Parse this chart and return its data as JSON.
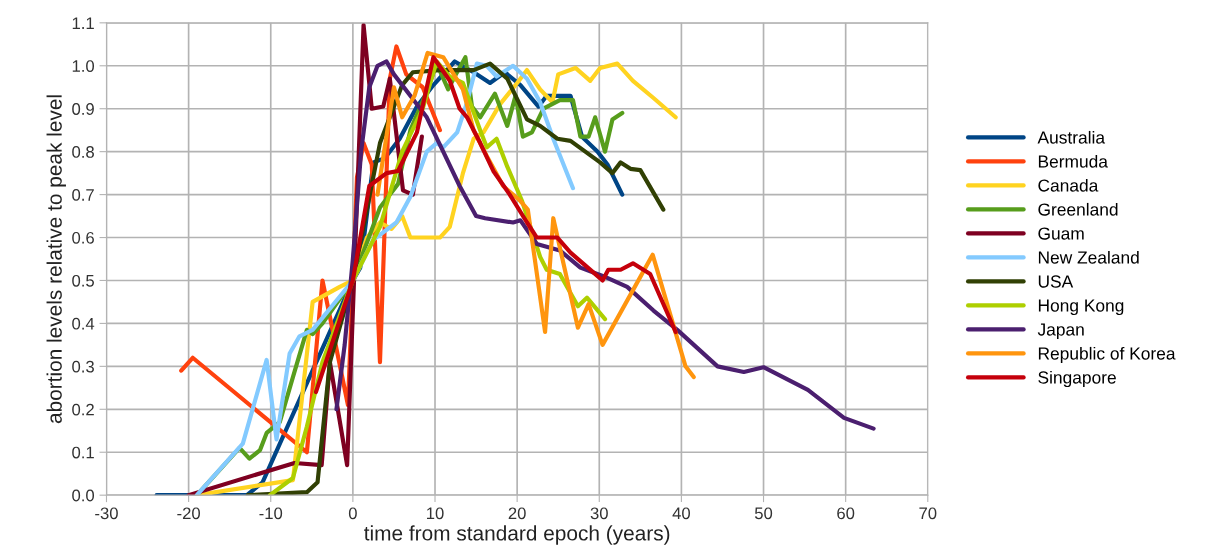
{
  "chart_data": {
    "type": "line",
    "xlabel": "time from standard epoch (years)",
    "ylabel": "abortion levels relative to peak level",
    "xlim": [
      -30,
      70
    ],
    "xticks": [
      -30,
      -20,
      -10,
      0,
      10,
      20,
      30,
      40,
      50,
      60,
      70
    ],
    "ylim": [
      0,
      1.1
    ],
    "yticks": [
      {
        "value": 0,
        "label": "0.0"
      },
      {
        "value": 0.1,
        "label": "0.1"
      },
      {
        "value": 0.2,
        "label": "0.2"
      },
      {
        "value": 0.3,
        "label": "0.3"
      },
      {
        "value": 0.4,
        "label": "0.4"
      },
      {
        "value": 0.5,
        "label": "0.5"
      },
      {
        "value": 0.6,
        "label": "0.6"
      },
      {
        "value": 0.7,
        "label": "0.7"
      },
      {
        "value": 0.8,
        "label": "0.8"
      },
      {
        "value": 0.9,
        "label": "0.9"
      },
      {
        "value": 1.0,
        "label": "1.0"
      },
      {
        "value": 1.1,
        "label": "1.1"
      }
    ],
    "grid": true,
    "legend": "right",
    "marker": "none",
    "line_style": "solid",
    "series": [
      {
        "name": "Australia",
        "color": "#004586",
        "x": [
          -23.9,
          -12.9,
          -11,
          0,
          0.9,
          2.5,
          3.9,
          5.7,
          7.8,
          9.8,
          12.4,
          14.7,
          16.7,
          18.5,
          20.4,
          22.6,
          23.6,
          26.5,
          27.9,
          29.8,
          31,
          32.8
        ],
        "values": [
          0,
          0,
          0.03,
          0.5,
          0.53,
          0.775,
          0.785,
          0.83,
          0.905,
          0.955,
          1.01,
          0.985,
          0.96,
          0.985,
          0.955,
          0.905,
          0.93,
          0.93,
          0.835,
          0.8,
          0.77,
          0.7
        ]
      },
      {
        "name": "Bermuda",
        "color": "#ff420e",
        "x": [
          -20.9,
          -19.5,
          -5.6,
          -3.7,
          -0.6,
          0.5,
          1.3,
          2.3,
          3.3,
          4.5,
          5.3,
          6.5,
          8.5,
          10.6
        ],
        "values": [
          0.29,
          0.32,
          0.1,
          0.5,
          0.21,
          0.74,
          0.82,
          0.77,
          0.31,
          0.97,
          1.045,
          0.98,
          0.95,
          0.85
        ]
      },
      {
        "name": "Canada",
        "color": "#ffd320",
        "x": [
          -19,
          -7.3,
          -4.9,
          -1.6,
          0,
          1.7,
          3.3,
          4.7,
          6,
          7,
          10.6,
          11.8,
          13.4,
          14.7,
          15.9,
          17.9,
          20,
          21.2,
          22.8,
          24.3,
          25,
          27.1,
          28.9,
          30.1,
          32.2,
          34.1,
          36.6,
          39.3
        ],
        "values": [
          0,
          0.035,
          0.45,
          0.485,
          0.5,
          0.6,
          0.635,
          0.62,
          0.65,
          0.6,
          0.6,
          0.625,
          0.75,
          0.83,
          0.845,
          0.91,
          0.96,
          0.99,
          0.945,
          0.915,
          0.98,
          0.995,
          0.965,
          0.995,
          1.005,
          0.965,
          0.925,
          0.88
        ]
      },
      {
        "name": "Greenland",
        "color": "#579d1c",
        "x": [
          -19,
          -13.8,
          -12.6,
          -11.3,
          -10.5,
          -8.9,
          -7.3,
          -5.6,
          -4.9,
          -3.7,
          0,
          3.3,
          5.5,
          7,
          9,
          10.2,
          11.6,
          12.4,
          13.7,
          14.5,
          15.5,
          17.3,
          18.8,
          19.8,
          20.7,
          21.8,
          23.2,
          25.2,
          26.8,
          27.7,
          28.7,
          29.5,
          30.7,
          31.6,
          32.8
        ],
        "values": [
          0,
          0.11,
          0.085,
          0.105,
          0.145,
          0.17,
          0.275,
          0.385,
          0.375,
          0.4,
          0.5,
          0.67,
          0.725,
          0.85,
          0.94,
          1.005,
          0.945,
          0.975,
          1.02,
          0.905,
          0.88,
          0.935,
          0.86,
          0.93,
          0.835,
          0.845,
          0.9,
          0.92,
          0.92,
          0.835,
          0.835,
          0.88,
          0.8,
          0.875,
          0.89
        ]
      },
      {
        "name": "Guam",
        "color": "#7e0021",
        "x": [
          -20,
          -7.1,
          -3.8,
          -2.8,
          -0.7,
          1.3,
          2.3,
          3.7,
          4.5,
          6.1,
          7.3,
          8.4
        ],
        "values": [
          0,
          0.075,
          0.07,
          0.31,
          0.07,
          1.095,
          0.9,
          0.905,
          0.97,
          0.71,
          0.7,
          0.835
        ]
      },
      {
        "name": "New Zealand",
        "color": "#83caff",
        "x": [
          -19,
          -13.4,
          -10.5,
          -9.3,
          -7.7,
          -6.5,
          -4.9,
          0,
          2.5,
          5.3,
          7,
          9,
          10.2,
          11,
          12.7,
          13.9,
          15.1,
          16.3,
          17.5,
          19.5,
          21.2,
          22.8,
          24.4,
          26.8
        ],
        "values": [
          0,
          0.12,
          0.315,
          0.13,
          0.33,
          0.37,
          0.385,
          0.5,
          0.595,
          0.635,
          0.695,
          0.8,
          0.82,
          0.81,
          0.845,
          0.915,
          1.005,
          1.0,
          0.975,
          1.0,
          0.97,
          0.915,
          0.83,
          0.715
        ]
      },
      {
        "name": "USA",
        "color": "#314004",
        "x": [
          -12.8,
          -5.6,
          -4.3,
          -2.8,
          0,
          3.3,
          6,
          7.3,
          10.6,
          14.7,
          16.7,
          18.8,
          21.2,
          22.8,
          24.9,
          26.5,
          30.1,
          31.6,
          32.6,
          33.8,
          35,
          37.8
        ],
        "values": [
          0,
          0.007,
          0.03,
          0.31,
          0.5,
          0.82,
          0.955,
          0.985,
          0.99,
          0.99,
          1.005,
          0.97,
          0.875,
          0.86,
          0.83,
          0.825,
          0.775,
          0.75,
          0.775,
          0.76,
          0.757,
          0.665
        ]
      },
      {
        "name": "Hong Kong",
        "color": "#aecf00",
        "x": [
          -10.1,
          -7.3,
          -5.6,
          -3.7,
          0,
          3.3,
          6,
          8.5,
          10.2,
          11.8,
          13.4,
          15.5,
          16.3,
          17.5,
          18.8,
          20.6,
          22.8,
          23.6,
          25.2,
          27.4,
          28.5,
          30.7
        ],
        "values": [
          0,
          0.04,
          0.16,
          0.31,
          0.5,
          0.625,
          0.8,
          0.9,
          1.01,
          0.975,
          0.96,
          0.85,
          0.81,
          0.83,
          0.765,
          0.685,
          0.555,
          0.525,
          0.515,
          0.44,
          0.46,
          0.41
        ]
      },
      {
        "name": "Japan",
        "color": "#4b1f6f",
        "x": [
          -2,
          -1,
          0,
          1,
          2,
          3,
          4.1,
          5,
          7,
          9,
          11,
          13,
          15,
          16.1,
          19.5,
          20.4,
          22.4,
          25.2,
          27.7,
          30.5,
          33.4,
          36.6,
          39.5,
          44.4,
          47.6,
          50,
          55.4,
          59.8,
          63.4
        ],
        "values": [
          0.2,
          0.35,
          0.55,
          0.8,
          0.95,
          1.0,
          1.01,
          0.98,
          0.93,
          0.88,
          0.8,
          0.72,
          0.65,
          0.645,
          0.635,
          0.64,
          0.585,
          0.57,
          0.53,
          0.51,
          0.485,
          0.43,
          0.385,
          0.3,
          0.287,
          0.298,
          0.245,
          0.18,
          0.155
        ]
      },
      {
        "name": "Republic of Korea",
        "color": "#ff950e",
        "x": [
          3,
          5,
          6,
          7.5,
          9.1,
          11,
          13.4,
          14.7,
          16.3,
          18.3,
          20.4,
          21.3,
          23.4,
          24.4,
          27.4,
          28.7,
          30.4,
          36.5,
          40.5,
          41.5
        ],
        "values": [
          0.7,
          0.95,
          0.88,
          0.93,
          1.03,
          1.02,
          0.945,
          0.85,
          0.79,
          0.72,
          0.685,
          0.665,
          0.38,
          0.645,
          0.39,
          0.445,
          0.35,
          0.56,
          0.3,
          0.275
        ]
      },
      {
        "name": "Singapore",
        "color": "#c5000b",
        "x": [
          -4.5,
          0,
          2,
          4.1,
          5.5,
          7.8,
          9.8,
          11.8,
          13,
          13.9,
          15.5,
          17.1,
          19.1,
          21.2,
          22.4,
          24.9,
          26.5,
          29.8,
          30.4,
          31.1,
          32.6,
          34.1,
          36.2,
          39.3
        ],
        "values": [
          0.24,
          0.5,
          0.72,
          0.75,
          0.755,
          0.845,
          1.02,
          0.965,
          0.9,
          0.88,
          0.82,
          0.755,
          0.7,
          0.635,
          0.6,
          0.6,
          0.565,
          0.51,
          0.5,
          0.525,
          0.525,
          0.54,
          0.515,
          0.38
        ]
      }
    ]
  }
}
